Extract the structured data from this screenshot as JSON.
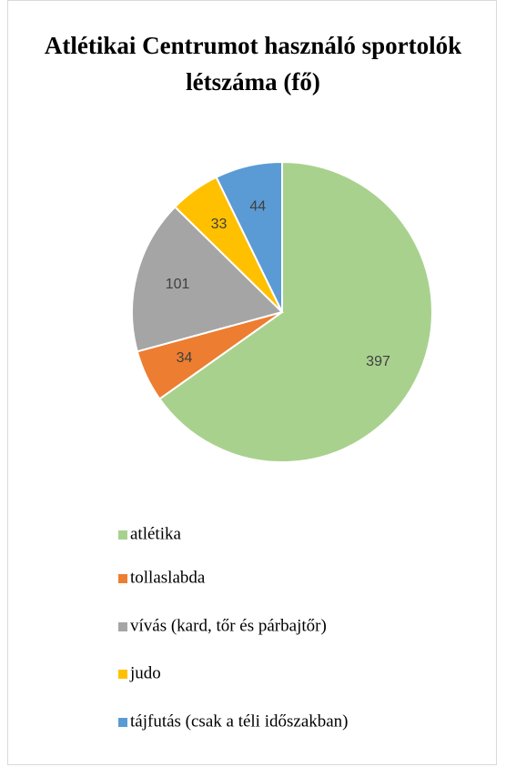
{
  "chart_data": {
    "type": "pie",
    "title": "Atlétikai Centrumot használó sportolók létszáma (fő)",
    "categories": [
      "atlétika",
      "tollaslabda",
      "vívás (kard, tőr és párbajtőr)",
      "judo",
      "tájfutás (csak a téli időszakban)"
    ],
    "values": [
      397,
      34,
      101,
      33,
      44
    ],
    "colors": [
      "#a9d18e",
      "#ed7d31",
      "#a5a5a5",
      "#ffc000",
      "#5b9bd5"
    ],
    "legend": "bottom"
  }
}
